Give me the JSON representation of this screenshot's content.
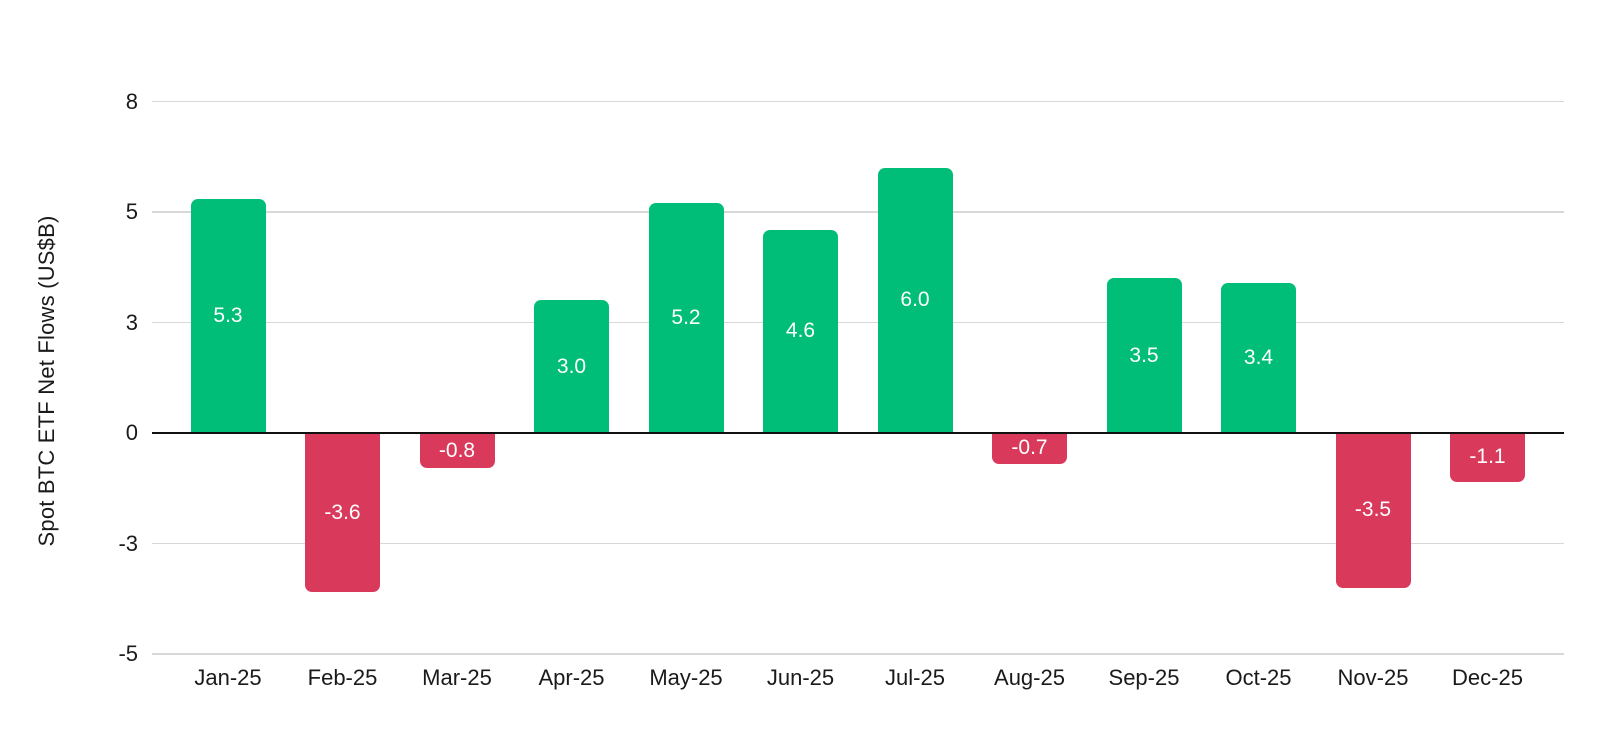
{
  "chart_data": {
    "type": "bar",
    "title": "",
    "xlabel": "",
    "ylabel": "Spot BTC ETF Net Flows (US$B)",
    "categories": [
      "Jan-25",
      "Feb-25",
      "Mar-25",
      "Apr-25",
      "May-25",
      "Jun-25",
      "Jul-25",
      "Aug-25",
      "Sep-25",
      "Oct-25",
      "Nov-25",
      "Dec-25"
    ],
    "values": [
      5.3,
      -3.6,
      -0.8,
      3.0,
      5.2,
      4.6,
      6.0,
      -0.7,
      3.5,
      3.4,
      -3.5,
      -1.1
    ],
    "value_labels": [
      "5.3",
      "-3.6",
      "-0.8",
      "3.0",
      "5.2",
      "4.6",
      "6.0",
      "-0.7",
      "3.5",
      "3.4",
      "-3.5",
      "-1.1"
    ],
    "yticks": [
      {
        "value": 7.5,
        "label": "8"
      },
      {
        "value": 5,
        "label": "5"
      },
      {
        "value": 2.5,
        "label": "3"
      },
      {
        "value": 0,
        "label": "0"
      },
      {
        "value": -2.5,
        "label": "-3"
      },
      {
        "value": -5,
        "label": "-5"
      }
    ],
    "ylim": [
      -5,
      7.5
    ],
    "grid": true,
    "legend": false,
    "colors": {
      "positive": "#00BE78",
      "negative": "#D93A5C",
      "gridline": "#D8D8D8",
      "zero_line": "#111111",
      "axis_text": "#1A1A1A",
      "bar_label": "#FFFFFF",
      "background": "#FFFFFF"
    }
  }
}
